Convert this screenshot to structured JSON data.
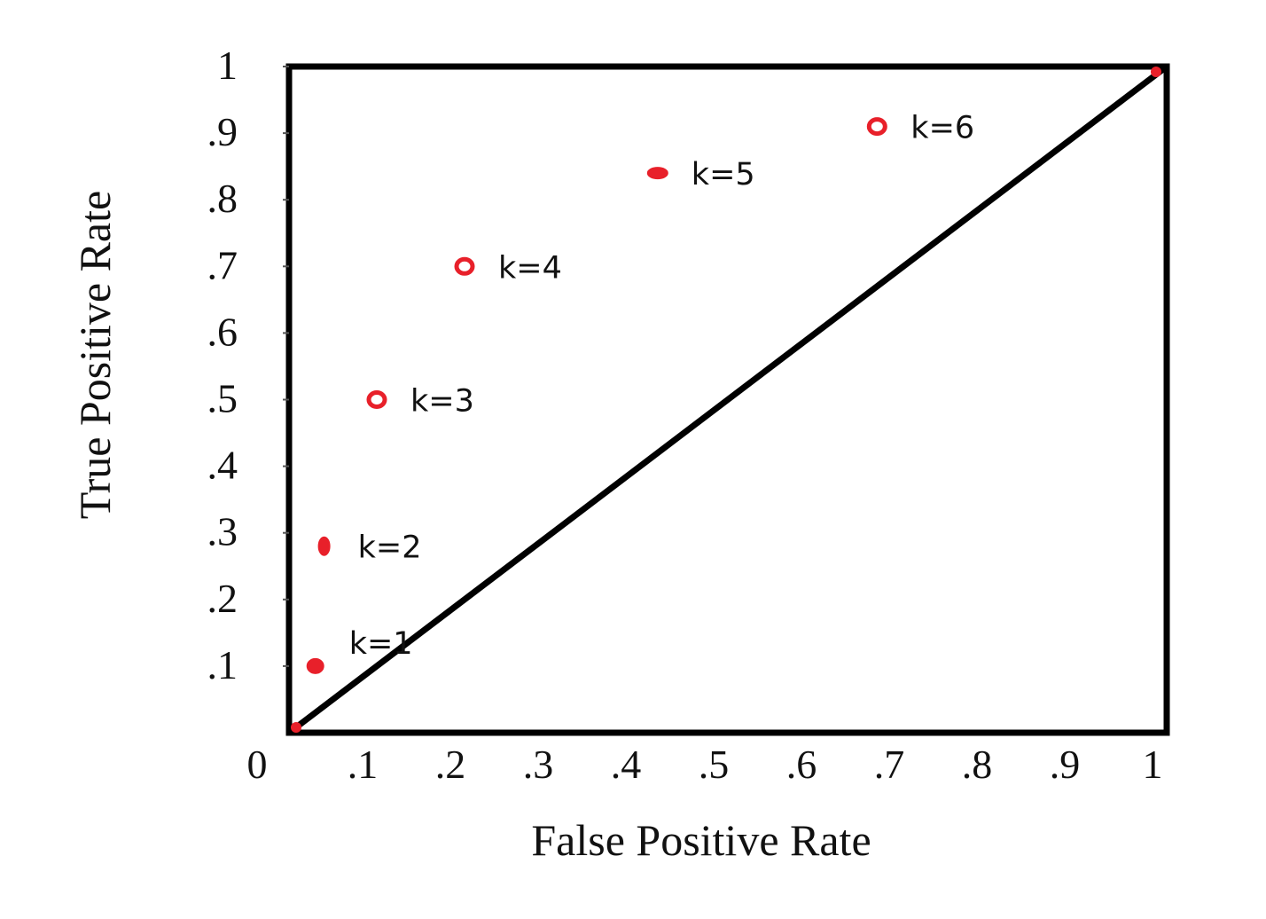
{
  "chart_data": {
    "type": "scatter",
    "title": "",
    "xlabel": "False Positive Rate",
    "ylabel": "True Positive Rate",
    "xlim": [
      0,
      1
    ],
    "ylim": [
      0,
      1
    ],
    "x_ticks": [
      {
        "value": 0,
        "label": "0"
      },
      {
        "value": 0.1,
        "label": ".1"
      },
      {
        "value": 0.2,
        "label": ".2"
      },
      {
        "value": 0.3,
        "label": ".3"
      },
      {
        "value": 0.4,
        "label": ".4"
      },
      {
        "value": 0.5,
        "label": ".5"
      },
      {
        "value": 0.6,
        "label": ".6"
      },
      {
        "value": 0.7,
        "label": ".7"
      },
      {
        "value": 0.8,
        "label": ".8"
      },
      {
        "value": 0.9,
        "label": ".9"
      },
      {
        "value": 1,
        "label": "1"
      }
    ],
    "y_ticks": [
      {
        "value": 0.1,
        "label": ".1"
      },
      {
        "value": 0.2,
        "label": ".2"
      },
      {
        "value": 0.3,
        "label": ".3"
      },
      {
        "value": 0.4,
        "label": ".4"
      },
      {
        "value": 0.5,
        "label": ".5"
      },
      {
        "value": 0.6,
        "label": ".6"
      },
      {
        "value": 0.7,
        "label": ".7"
      },
      {
        "value": 0.8,
        "label": ".8"
      },
      {
        "value": 0.9,
        "label": ".9"
      },
      {
        "value": 1,
        "label": "1"
      }
    ],
    "series": [
      {
        "points": [
          {
            "x": 0.03,
            "y": 0.1,
            "label": "k=1"
          },
          {
            "x": 0.04,
            "y": 0.28,
            "label": "k=2"
          },
          {
            "x": 0.1,
            "y": 0.5,
            "label": "k=3"
          },
          {
            "x": 0.2,
            "y": 0.7,
            "label": "k=4"
          },
          {
            "x": 0.42,
            "y": 0.84,
            "label": "k=5"
          },
          {
            "x": 0.67,
            "y": 0.91,
            "label": "k=6"
          }
        ]
      }
    ],
    "reference_line": {
      "from": [
        0,
        0
      ],
      "to": [
        1,
        1
      ]
    },
    "grid": false,
    "legend": "none",
    "colors": {
      "points": "#e8202a",
      "frame": "#000000",
      "diagonal": "#000000",
      "text": "#111111"
    }
  }
}
